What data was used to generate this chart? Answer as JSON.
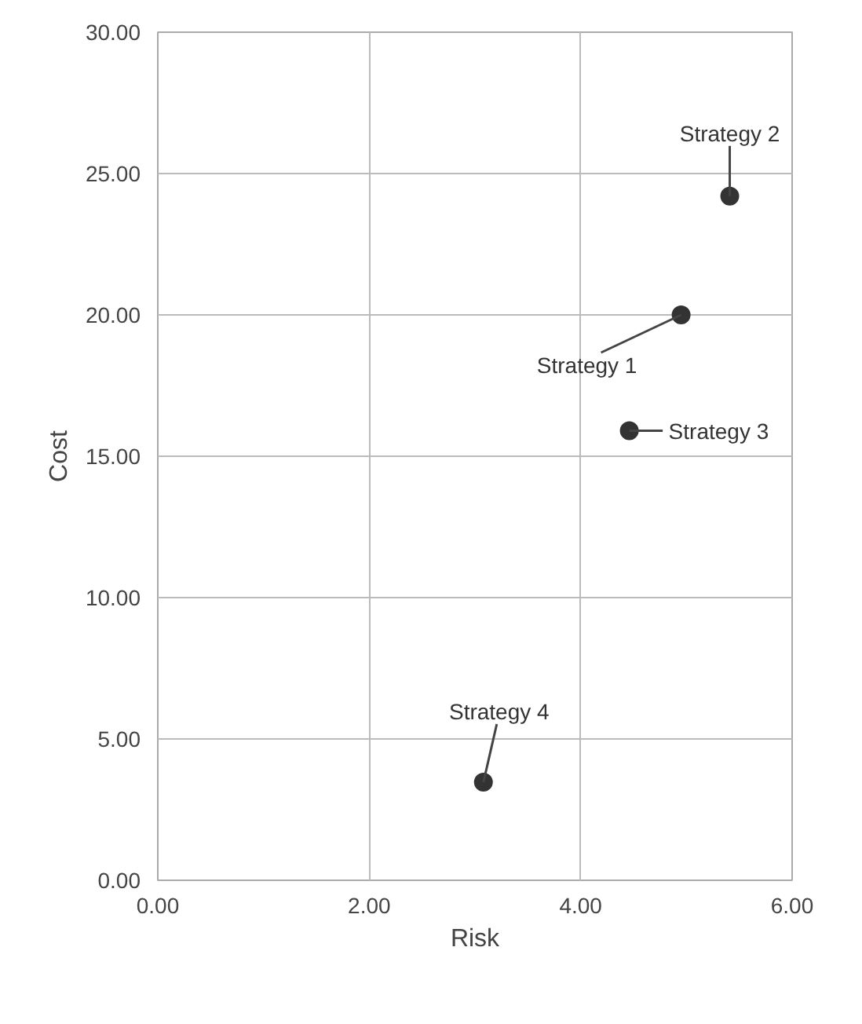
{
  "chart_data": {
    "type": "scatter",
    "xlabel": "Risk",
    "ylabel": "Cost",
    "x": [
      4.95,
      5.41,
      4.46,
      3.08
    ],
    "values": [
      20.0,
      24.2,
      15.9,
      3.47
    ],
    "color": "#333333",
    "marker": "circle",
    "grid": true,
    "xlim": [
      0,
      6
    ],
    "ylim": [
      0,
      30
    ],
    "xticks": [
      {
        "value": 0,
        "label": "0.00"
      },
      {
        "value": 2,
        "label": "2.00"
      },
      {
        "value": 4,
        "label": "4.00"
      },
      {
        "value": 6,
        "label": "6.00"
      }
    ],
    "yticks": [
      {
        "value": 0,
        "label": "0.00"
      },
      {
        "value": 5,
        "label": "5.00"
      },
      {
        "value": 10,
        "label": "10.00"
      },
      {
        "value": 15,
        "label": "15.00"
      },
      {
        "value": 20,
        "label": "20.00"
      },
      {
        "value": 25,
        "label": "25.00"
      },
      {
        "value": 30,
        "label": "30.00"
      }
    ],
    "annotations": [
      {
        "text": "Strategy 1",
        "x": 4.95,
        "y": 20.0
      },
      {
        "text": "Strategy 2",
        "x": 5.41,
        "y": 24.2
      },
      {
        "text": "Strategy 3",
        "x": 4.46,
        "y": 15.9
      },
      {
        "text": "Strategy 4",
        "x": 3.08,
        "y": 3.47
      }
    ]
  }
}
